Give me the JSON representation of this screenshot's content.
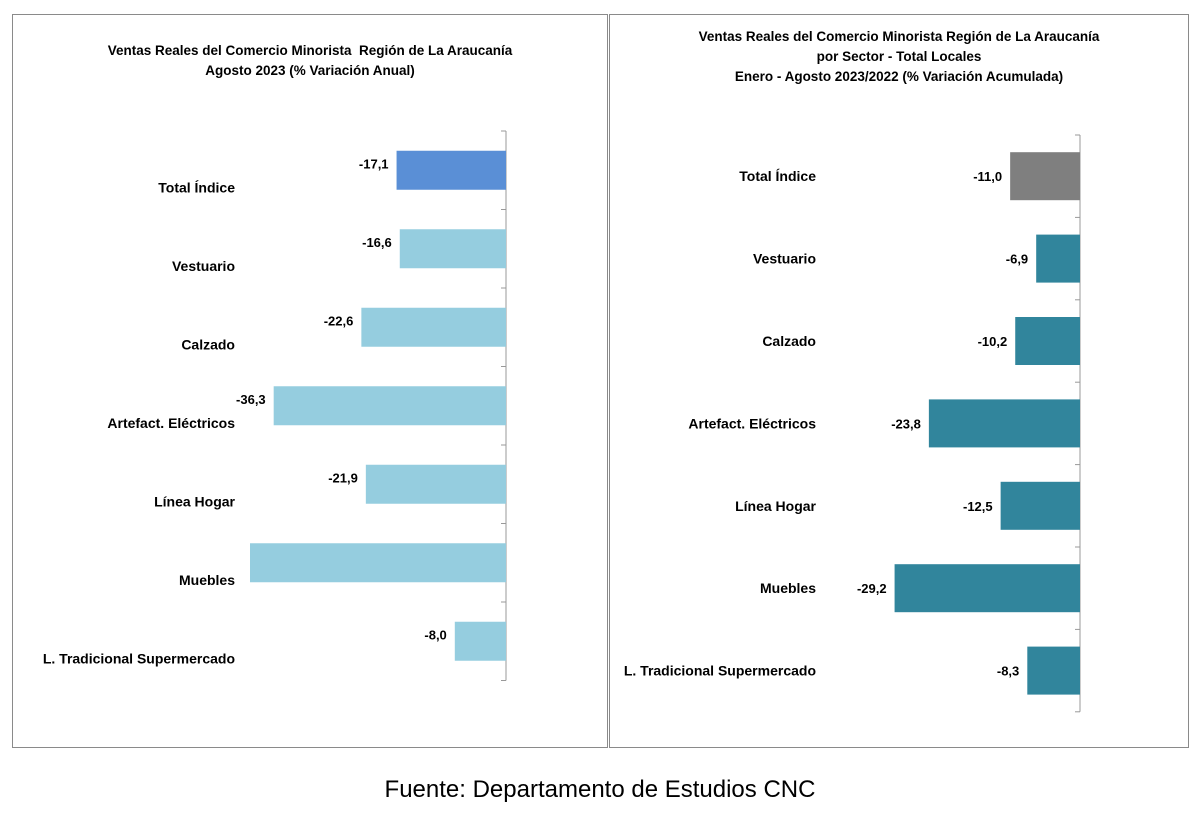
{
  "chart_data": [
    {
      "type": "bar",
      "orientation": "horizontal",
      "title": [
        "Ventas Reales del Comercio Minorista  Región de La Araucanía",
        "Agosto 2023 (% Variación Anual)"
      ],
      "categories": [
        "Total Índice",
        "Vestuario",
        "Calzado",
        "Artefact. Eléctricos",
        "Línea Hogar",
        "Muebles",
        "L. Tradicional Supermercado"
      ],
      "values": [
        -17.1,
        -16.6,
        -22.6,
        -36.3,
        -21.9,
        -40.0,
        -8.0
      ],
      "value_labels": [
        "-17,1",
        "-16,6",
        "-22,6",
        "-36,3",
        "-21,9",
        "",
        "-8,0"
      ],
      "bar_colors": [
        "#5a8fd6",
        "#95cddf",
        "#95cddf",
        "#95cddf",
        "#95cddf",
        "#95cddf",
        "#95cddf"
      ],
      "xlim": [
        -40.0,
        0
      ],
      "grid": false
    },
    {
      "type": "bar",
      "orientation": "horizontal",
      "title": [
        "Ventas Reales del Comercio Minorista Región de La Araucanía",
        "por Sector - Total Locales",
        "Enero - Agosto 2023/2022 (% Variación Acumulada)"
      ],
      "categories": [
        "Total Índice",
        "Vestuario",
        "Calzado",
        "Artefact. Eléctricos",
        "Línea Hogar",
        "Muebles",
        "L. Tradicional Supermercado"
      ],
      "values": [
        -11.0,
        -6.9,
        -10.2,
        -23.8,
        -12.5,
        -29.2,
        -8.3
      ],
      "value_labels": [
        "-11,0",
        "-6,9",
        "-10,2",
        "-23,8",
        "-12,5",
        "-29,2",
        "-8,3"
      ],
      "bar_colors": [
        "#7f7f7f",
        "#31859c",
        "#31859c",
        "#31859c",
        "#31859c",
        "#31859c",
        "#31859c"
      ],
      "xlim": [
        -40.0,
        0
      ],
      "grid": false
    }
  ],
  "source": "Fuente: Departamento de Estudios CNC"
}
